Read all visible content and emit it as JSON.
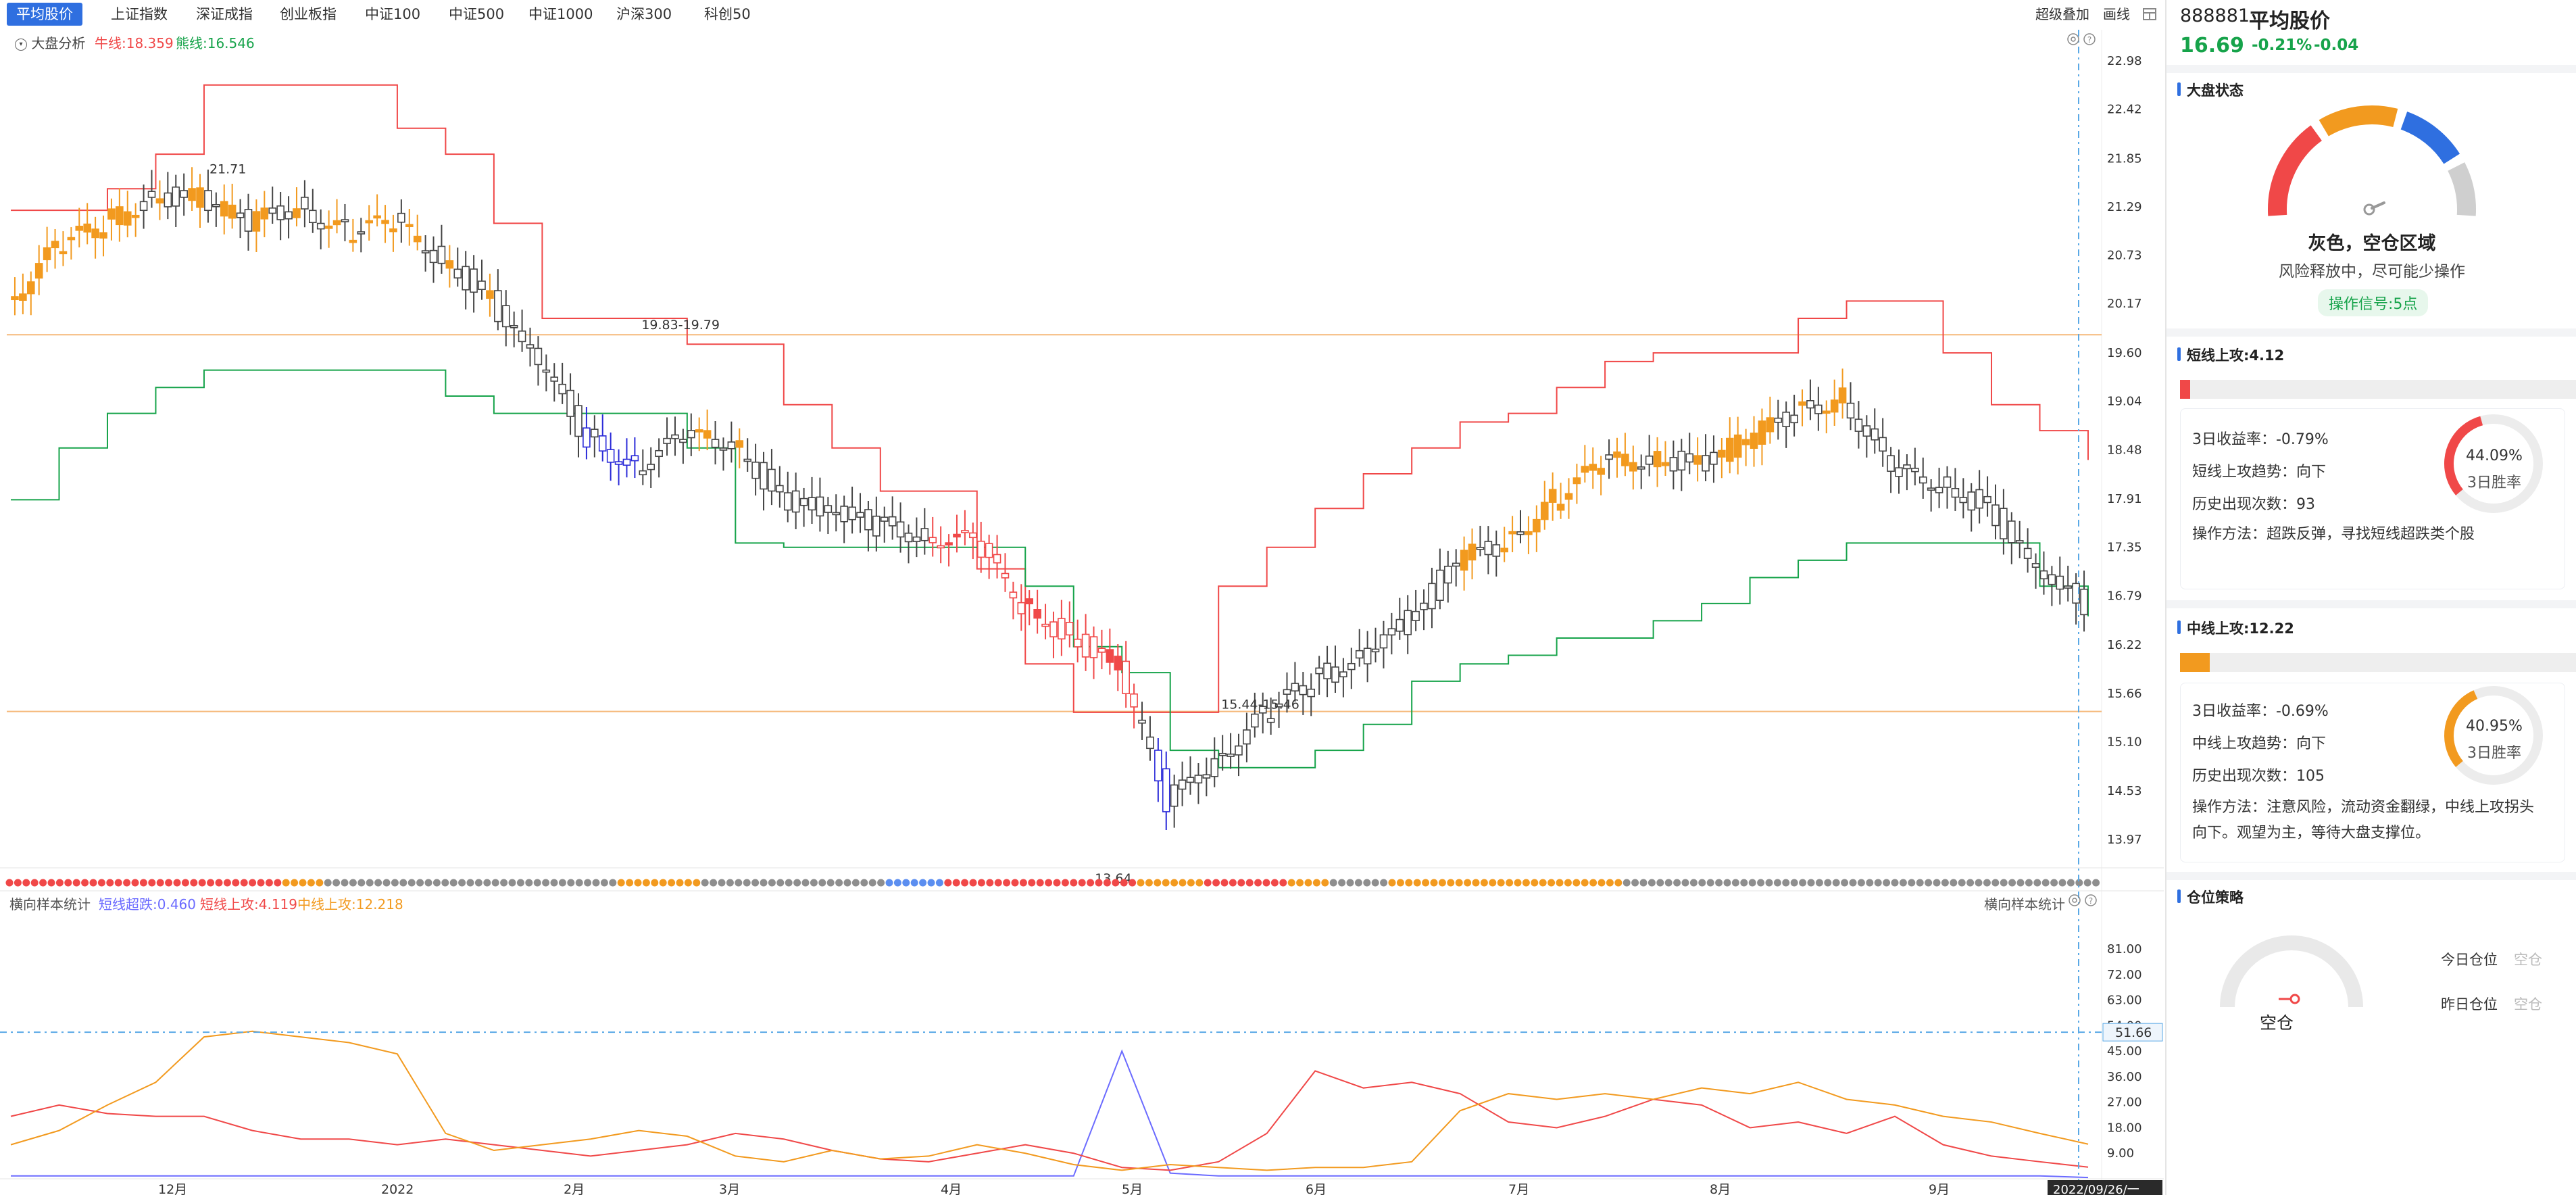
{
  "tabs": [
    {
      "label": "平均股价",
      "active": true
    },
    {
      "label": "上证指数"
    },
    {
      "label": "深证成指"
    },
    {
      "label": "创业板指"
    },
    {
      "label": "中证100"
    },
    {
      "label": "中证500"
    },
    {
      "label": "中证1000"
    },
    {
      "label": "沪深300"
    },
    {
      "label": "科创50"
    }
  ],
  "tools": {
    "overlay": "超级叠加",
    "draw": "画线"
  },
  "main_legend": {
    "title": "大盘分析",
    "bull": "牛线:18.359",
    "bear": "熊线:16.546"
  },
  "main_chart": {
    "price_labels": [
      "22.98",
      "22.42",
      "21.85",
      "21.29",
      "20.73",
      "20.17",
      "19.60",
      "19.04",
      "18.48",
      "17.91",
      "17.35",
      "16.79",
      "16.22",
      "15.66",
      "15.10",
      "14.53",
      "13.97"
    ],
    "annotations": {
      "high": "21.71",
      "low": "13.64",
      "resist": "19.83-19.79",
      "support": "15.44-15.46"
    }
  },
  "sub_legend": {
    "title": "横向样本统计",
    "s1": "短线超跌:0.460",
    "s2": "短线上攻:4.119",
    "s3": "中线上攻:12.218",
    "right_title": "横向样本统计"
  },
  "sub_chart": {
    "labels": [
      "81.00",
      "72.00",
      "63.00",
      "54.00",
      "45.00",
      "36.00",
      "27.00",
      "18.00",
      "9.00"
    ],
    "crosshair": "51.66"
  },
  "x_axis": {
    "labels": [
      "12月",
      "2022",
      "2月",
      "3月",
      "4月",
      "5月",
      "6月",
      "7月",
      "8月",
      "9月"
    ],
    "cursor_date": "2022/09/26/一"
  },
  "stock": {
    "code": "888881",
    "name": "平均股价",
    "price": "16.69",
    "pct": "-0.21%",
    "chg": "-0.04"
  },
  "market": {
    "title": "大盘状态",
    "state": "灰色，空仓区域",
    "desc": "风险释放中，尽可能少操作",
    "signal": "操作信号:5点"
  },
  "short": {
    "title": "短线上攻:4.12",
    "fill": 0.025,
    "return": "3日收益率：-0.79%",
    "trend": "短线上攻趋势：向下",
    "count": "历史出现次数：93",
    "method": "操作方法：超跌反弹，寻找短线超跌类个股",
    "winrate": "44.09%",
    "winlabel": "3日胜率",
    "win": 0.4409
  },
  "mid": {
    "title": "中线上攻:12.22",
    "fill": 0.074,
    "return": "3日收益率：-0.69%",
    "trend": "中线上攻趋势：向下",
    "count": "历史出现次数：105",
    "method": "操作方法：注意风险，流动资金翻绿，中线上攻拐头向下。观望为主，等待大盘支撑位。",
    "winrate": "40.95%",
    "winlabel": "3日胜率",
    "win": 0.4095
  },
  "position": {
    "title": "仓位策略",
    "state": "空仓",
    "today_label": "今日仓位",
    "today_val": "空仓",
    "yday_label": "昨日仓位",
    "yday_val": "空仓"
  },
  "colors": {
    "up": "#f04848",
    "down": "#16a34a",
    "warn": "#f29a1f",
    "grey": "#8e8e8e",
    "blue": "#2f6fe0",
    "accent": "#2f6fe0"
  },
  "chart_data": [
    {
      "type": "line",
      "title": "",
      "x_ticks": [
        "12月",
        "2022",
        "2月",
        "3月",
        "4月",
        "5月",
        "6月",
        "7月",
        "8月",
        "9月"
      ],
      "ylim": [
        13.64,
        22.98
      ],
      "series": [
        {
          "name": "牛线",
          "values": [
            21.25,
            21.25,
            21.5,
            21.9,
            22.7,
            22.7,
            22.7,
            22.7,
            22.2,
            21.9,
            21.1,
            20.0,
            20.0,
            20.0,
            19.7,
            19.7,
            19.0,
            18.5,
            18.0,
            18.0,
            17.1,
            16.0,
            15.44,
            15.44,
            15.44,
            16.9,
            17.35,
            17.8,
            18.2,
            18.5,
            18.8,
            18.9,
            19.2,
            19.5,
            19.6,
            19.6,
            19.6,
            20.0,
            20.2,
            20.2,
            19.6,
            19.0,
            18.7,
            18.36
          ]
        },
        {
          "name": "熊线",
          "values": [
            17.9,
            18.5,
            18.9,
            19.2,
            19.4,
            19.4,
            19.4,
            19.4,
            19.4,
            19.1,
            18.9,
            18.9,
            18.9,
            18.9,
            18.5,
            17.4,
            17.35,
            17.35,
            17.35,
            17.35,
            17.35,
            16.9,
            16.2,
            15.9,
            15.0,
            14.8,
            14.8,
            15.0,
            15.3,
            15.8,
            16.0,
            16.1,
            16.3,
            16.3,
            16.5,
            16.7,
            17.0,
            17.2,
            17.4,
            17.4,
            17.4,
            17.4,
            16.9,
            16.55
          ]
        },
        {
          "name": "收盘",
          "values": [
            20.2,
            20.8,
            21.1,
            21.4,
            21.4,
            21.1,
            21.3,
            21.0,
            21.1,
            20.7,
            20.2,
            19.5,
            18.6,
            18.3,
            18.6,
            18.6,
            17.9,
            17.8,
            17.6,
            17.5,
            17.4,
            16.7,
            16.3,
            16.0,
            14.4,
            14.9,
            15.4,
            15.8,
            16.1,
            16.5,
            17.2,
            17.4,
            17.9,
            18.3,
            18.4,
            18.3,
            18.6,
            18.9,
            19.1,
            18.2,
            18.1,
            17.8,
            17.1,
            16.69
          ]
        }
      ],
      "annotations": [
        "21.71",
        "13.64",
        "19.83-19.79",
        "15.44-15.46"
      ]
    },
    {
      "type": "line",
      "title": "",
      "ylim": [
        0,
        81
      ],
      "series": [
        {
          "name": "短线超跌",
          "values": [
            1,
            1,
            1,
            1,
            1,
            1,
            1,
            1,
            1,
            1,
            1,
            1,
            1,
            1,
            1,
            1,
            1,
            1,
            1,
            1,
            1,
            1,
            1,
            45,
            2,
            1,
            1,
            1,
            1,
            1,
            1,
            1,
            1,
            1,
            1,
            1,
            1,
            1,
            1,
            1,
            1,
            1,
            1,
            0.46
          ]
        },
        {
          "name": "短线上攻",
          "values": [
            22,
            26,
            23,
            22,
            22,
            17,
            14,
            14,
            12,
            14,
            12,
            10,
            8,
            10,
            12,
            16,
            14,
            10,
            7,
            6,
            9,
            12,
            9,
            4,
            3,
            6,
            16,
            38,
            32,
            34,
            30,
            20,
            18,
            22,
            28,
            26,
            18,
            20,
            16,
            22,
            12,
            8,
            6,
            4.119
          ]
        },
        {
          "name": "中线上攻",
          "values": [
            12,
            17,
            26,
            34,
            50,
            52,
            50,
            48,
            44,
            16,
            10,
            12,
            14,
            17,
            15,
            8,
            6,
            10,
            7,
            8,
            12,
            9,
            5,
            3,
            5,
            4,
            3,
            4,
            4,
            6,
            24,
            30,
            28,
            30,
            28,
            32,
            30,
            34,
            28,
            26,
            22,
            20,
            16,
            12.218
          ]
        }
      ]
    }
  ]
}
